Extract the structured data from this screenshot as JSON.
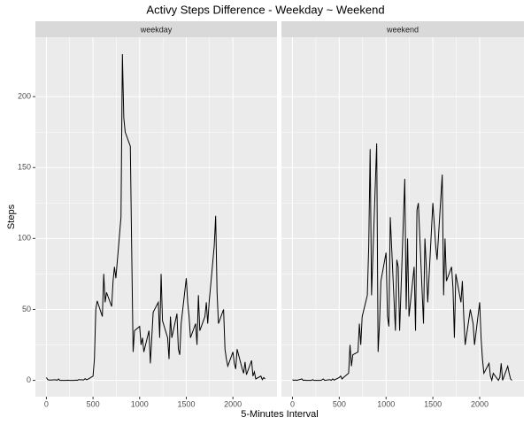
{
  "chart_data": {
    "type": "line",
    "title": "Activy Steps Difference - Weekday ~ Weekend",
    "x_label": "5-Minutes Interval",
    "y_label": "Steps",
    "x": [
      0,
      15,
      30,
      45,
      100,
      115,
      130,
      145,
      200,
      215,
      230,
      245,
      300,
      315,
      330,
      345,
      400,
      415,
      430,
      445,
      500,
      515,
      530,
      545,
      600,
      615,
      630,
      645,
      700,
      715,
      730,
      745,
      800,
      815,
      830,
      845,
      900,
      915,
      930,
      945,
      1000,
      1015,
      1030,
      1045,
      1100,
      1115,
      1130,
      1145,
      1200,
      1215,
      1230,
      1245,
      1300,
      1315,
      1330,
      1345,
      1400,
      1415,
      1430,
      1445,
      1500,
      1515,
      1530,
      1545,
      1600,
      1615,
      1630,
      1645,
      1700,
      1715,
      1730,
      1745,
      1800,
      1815,
      1830,
      1845,
      1900,
      1915,
      1930,
      1945,
      2000,
      2015,
      2030,
      2045,
      2100,
      2115,
      2130,
      2145,
      2200,
      2215,
      2230,
      2245,
      2300,
      2315,
      2330,
      2345
    ],
    "series": [
      {
        "name": "weekday",
        "color": "#000000",
        "values": [
          2,
          0.5,
          0.2,
          0.2,
          0.4,
          0,
          1,
          0,
          0,
          0,
          0.1,
          0,
          0,
          0.2,
          0,
          0.5,
          0.3,
          1.2,
          0.4,
          0.8,
          3,
          15,
          50,
          56,
          45,
          75,
          55,
          62,
          52,
          70,
          80,
          72,
          115,
          230,
          185,
          175,
          165,
          90,
          20,
          35,
          38,
          25,
          30,
          20,
          35,
          12,
          30,
          48,
          55,
          30,
          75,
          42,
          30,
          15,
          45,
          30,
          47,
          22,
          18,
          40,
          72,
          55,
          45,
          30,
          40,
          25,
          60,
          35,
          45,
          55,
          40,
          55,
          95,
          116,
          62,
          40,
          50,
          22,
          15,
          10,
          20,
          12,
          8,
          22,
          8,
          5,
          13,
          4,
          14,
          3,
          6,
          1,
          3,
          0.5,
          2,
          1
        ]
      },
      {
        "name": "weekend",
        "color": "#000000",
        "values": [
          0.5,
          0,
          0.3,
          0,
          1,
          0,
          0.2,
          0,
          0,
          0.5,
          0,
          0,
          0,
          0.3,
          1,
          0,
          0.5,
          0,
          1,
          0.2,
          2,
          3,
          1,
          2,
          5,
          25,
          10,
          18,
          20,
          40,
          25,
          45,
          60,
          95,
          163,
          60,
          167,
          20,
          40,
          70,
          90,
          45,
          38,
          115,
          35,
          85,
          80,
          35,
          142,
          50,
          100,
          45,
          80,
          35,
          120,
          125,
          40,
          100,
          80,
          55,
          125,
          110,
          95,
          85,
          145,
          60,
          100,
          70,
          80,
          65,
          30,
          75,
          55,
          70,
          45,
          25,
          50,
          45,
          40,
          25,
          55,
          30,
          15,
          5,
          12,
          3,
          0,
          5,
          0,
          2,
          12,
          0,
          10,
          5,
          1,
          0
        ]
      }
    ],
    "xlim": [
      -117.75,
      2472.75
    ],
    "ylim": [
      -11.5,
      241.9
    ],
    "xticks": [
      0,
      500,
      1000,
      1500,
      2000
    ],
    "yticks": [
      0,
      50,
      100,
      150,
      200
    ],
    "grid": true
  }
}
